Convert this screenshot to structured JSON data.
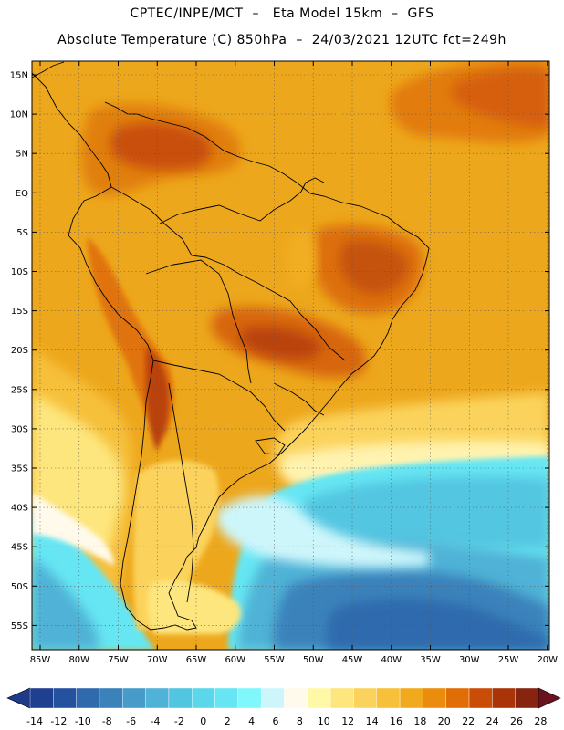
{
  "title_line1": "CPTEC/INPE/MCT  –   Eta Model 15km  –  GFS",
  "title_line2": "Absolute Temperature (C) 850hPa  –  24/03/2021 12UTC fct=249h",
  "lat_labels": [
    "15N",
    "10N",
    "5N",
    "EQ",
    "5S",
    "10S",
    "15S",
    "20S",
    "25S",
    "30S",
    "35S",
    "40S",
    "45S",
    "50S",
    "55S"
  ],
  "lon_labels": [
    "85W",
    "80W",
    "75W",
    "70W",
    "65W",
    "60W",
    "55W",
    "50W",
    "45W",
    "40W",
    "35W",
    "30W",
    "25W",
    "20W"
  ],
  "colorbar": {
    "labels": [
      "-14",
      "-12",
      "-10",
      "-8",
      "-6",
      "-4",
      "-2",
      "0",
      "2",
      "4",
      "6",
      "8",
      "10",
      "12",
      "14",
      "16",
      "18",
      "20",
      "22",
      "24",
      "26",
      "28"
    ],
    "colors": [
      "#1f3f8f",
      "#24529e",
      "#2f6aad",
      "#3b82bb",
      "#469bc9",
      "#4fb2d6",
      "#52c6e1",
      "#5ad7ea",
      "#66e6f3",
      "#7ff7fb",
      "#cdf6fb",
      "#fffaeb",
      "#fff8a6",
      "#fde67d",
      "#fbd35c",
      "#f6c03a",
      "#f1a91d",
      "#eb8c0c",
      "#e06d06",
      "#c94d06",
      "#a83408",
      "#862410"
    ],
    "end_left": "#1f3a87",
    "end_right": "#6b1220"
  },
  "colors": {
    "land_base": "#eca51c",
    "ocean_warm": "#f0ae1a",
    "coast": "#000000",
    "grid": "#666666"
  }
}
